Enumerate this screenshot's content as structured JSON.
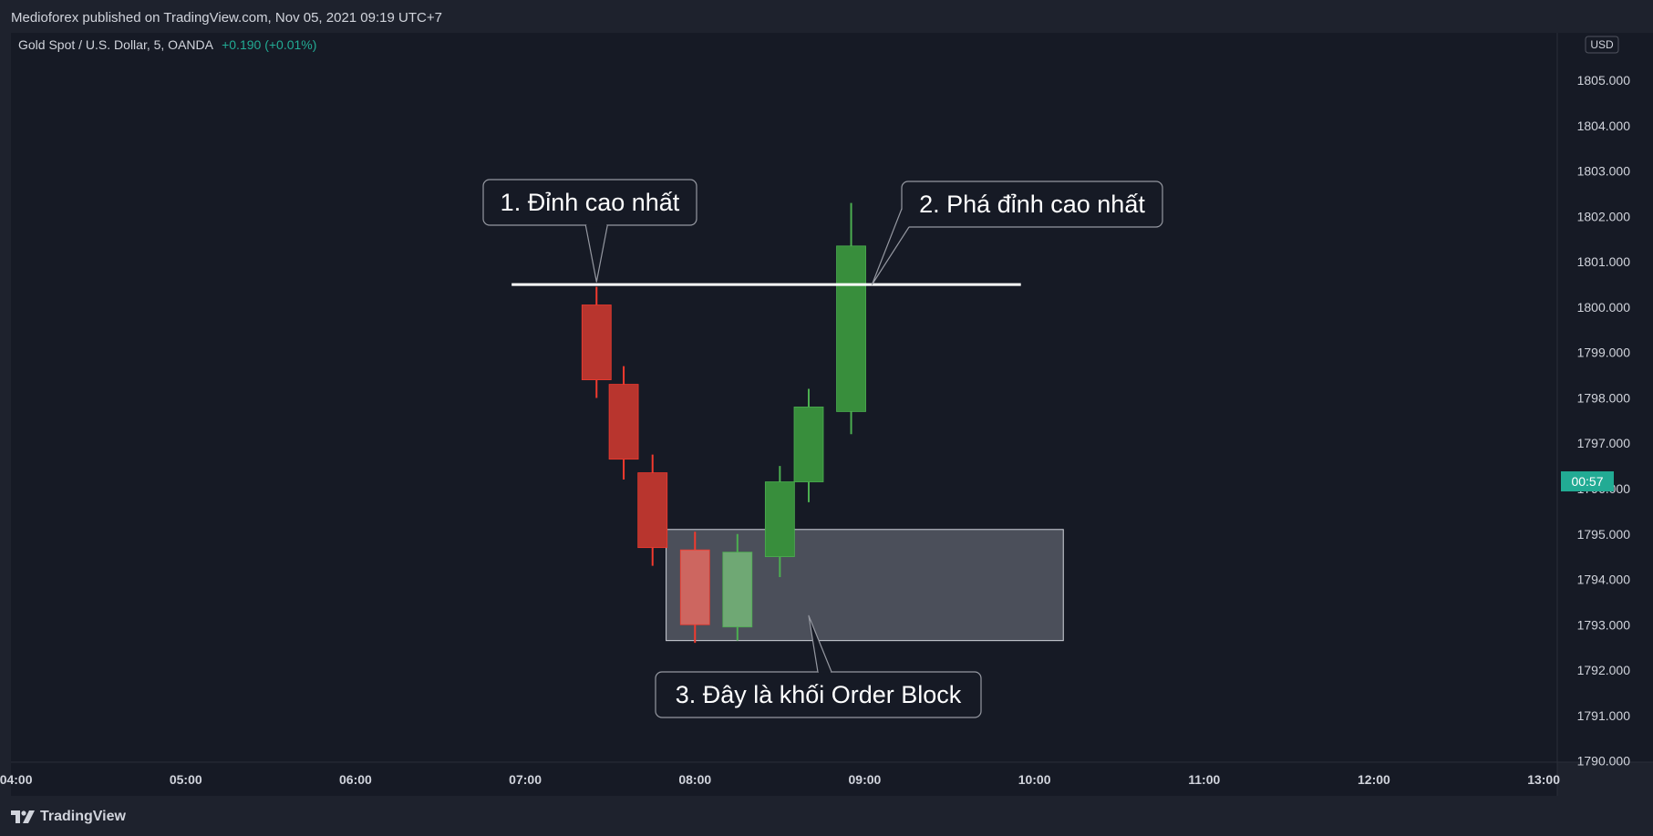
{
  "header": {
    "publisher": "Medioforex published on TradingView.com, Nov 05, 2021 09:19 UTC+7"
  },
  "legend": {
    "symbol": "Gold Spot / U.S. Dollar, 5, OANDA",
    "change": "+0.190 (+0.01%)"
  },
  "price_axis": {
    "currency": "USD",
    "countdown": "00:57"
  },
  "footer": {
    "brand": "TradingView"
  },
  "colors": {
    "bull": "#388e3c",
    "bull_light": "#6fa874",
    "bull_wick": "#4caf50",
    "bear": "#b8352e",
    "bear_light": "#cd6660",
    "bear_wick": "#f23a2e",
    "accent": "#22ab94"
  },
  "chart_data": {
    "type": "candlestick",
    "title": "Gold Spot / U.S. Dollar, 5, OANDA",
    "ylim": [
      1789.97,
      1806.05
    ],
    "y_ticks": [
      1790,
      1791,
      1792,
      1793,
      1794,
      1795,
      1796,
      1797,
      1798,
      1799,
      1800,
      1801,
      1802,
      1803,
      1804,
      1805
    ],
    "y_tick_labels": [
      "1790.000",
      "1791.000",
      "1792.000",
      "1793.000",
      "1794.000",
      "1795.000",
      "1796.000",
      "1797.000",
      "1798.000",
      "1799.000",
      "1800.000",
      "1801.000",
      "1802.000",
      "1803.000",
      "1804.000",
      "1805.000"
    ],
    "x_range_hours": [
      3.97,
      13.08
    ],
    "x_ticks": [
      4,
      5,
      6,
      7,
      8,
      9,
      10,
      11,
      12,
      13
    ],
    "x_tick_labels": [
      "04:00",
      "05:00",
      "06:00",
      "07:00",
      "08:00",
      "09:00",
      "10:00",
      "11:00",
      "12:00",
      "13:00"
    ],
    "candles": [
      {
        "t": 7.42,
        "open": 1800.05,
        "high": 1800.45,
        "low": 1798.0,
        "close": 1798.4,
        "style": "bear"
      },
      {
        "t": 7.58,
        "open": 1798.3,
        "high": 1798.7,
        "low": 1796.2,
        "close": 1796.65,
        "style": "bear"
      },
      {
        "t": 7.75,
        "open": 1796.35,
        "high": 1796.75,
        "low": 1794.3,
        "close": 1794.7,
        "style": "bear"
      },
      {
        "t": 8.0,
        "open": 1794.65,
        "high": 1795.05,
        "low": 1792.6,
        "close": 1793.0,
        "style": "bear_light"
      },
      {
        "t": 8.25,
        "open": 1792.95,
        "high": 1795.0,
        "low": 1792.65,
        "close": 1794.6,
        "style": "bull_light"
      },
      {
        "t": 8.5,
        "open": 1794.5,
        "high": 1796.5,
        "low": 1794.05,
        "close": 1796.15,
        "style": "bull"
      },
      {
        "t": 8.67,
        "open": 1796.15,
        "high": 1798.2,
        "low": 1795.7,
        "close": 1797.8,
        "style": "bull"
      },
      {
        "t": 8.92,
        "open": 1797.7,
        "high": 1802.3,
        "low": 1797.2,
        "close": 1801.35,
        "style": "bull"
      }
    ],
    "last_price": 1796.1,
    "horizontal_line": {
      "price": 1800.5,
      "t_start": 6.92,
      "t_end": 9.92
    },
    "order_block": {
      "t_start": 7.83,
      "t_end": 10.17,
      "price_top": 1795.1,
      "price_bottom": 1792.65
    },
    "annotations": [
      {
        "text": "1. Đỉnh cao nhất",
        "anchor_t": 7.42,
        "anchor_price": 1800.5
      },
      {
        "text": "2. Phá đỉnh cao nhất",
        "anchor_t": 9.0,
        "anchor_price": 1800.5
      },
      {
        "text": "3. Đây là khối Order Block",
        "anchor_t": 8.67,
        "anchor_price": 1793.2
      }
    ]
  }
}
